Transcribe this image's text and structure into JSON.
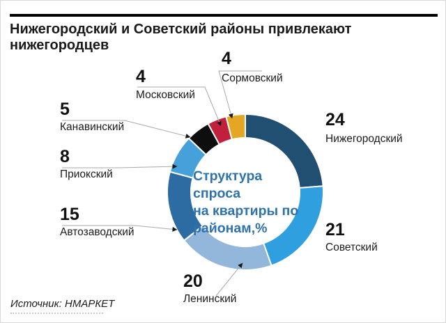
{
  "header": {
    "title": "Нижегородский и Советский районы привлекают нижегородцев"
  },
  "chart_data": {
    "type": "pie",
    "subtype": "donut",
    "title": "Структура спроса на квартиры по районам,%",
    "center_label_lines": [
      "Структура спроса",
      "на квартиры по",
      "районам,%"
    ],
    "start_angle_deg": 0,
    "direction": "clockwise",
    "units": "%",
    "slices": [
      {
        "label": "Нижегородский",
        "value": 24,
        "color": "#214f71"
      },
      {
        "label": "Советский",
        "value": 21,
        "color": "#2f9fe0"
      },
      {
        "label": "Ленинский",
        "value": 20,
        "color": "#93b7da"
      },
      {
        "label": "Автозаводский",
        "value": 15,
        "color": "#2d6ca3"
      },
      {
        "label": "Приокский",
        "value": 8,
        "color": "#46a1da"
      },
      {
        "label": "Канавинский",
        "value": 5,
        "color": "#0e0e0e"
      },
      {
        "label": "Московский",
        "value": 4,
        "color": "#c0203c"
      },
      {
        "label": "Сормовский",
        "value": 4,
        "color": "#e4a724"
      }
    ]
  },
  "footer": {
    "source": "Источник: НМАРКЕТ"
  },
  "colors": {
    "title_text": "#1a1a1a",
    "center_text": "#2e72ae",
    "top_rule": "#000000",
    "leader_line": "#a8a8a8",
    "slice_separator": "#ffffff"
  }
}
